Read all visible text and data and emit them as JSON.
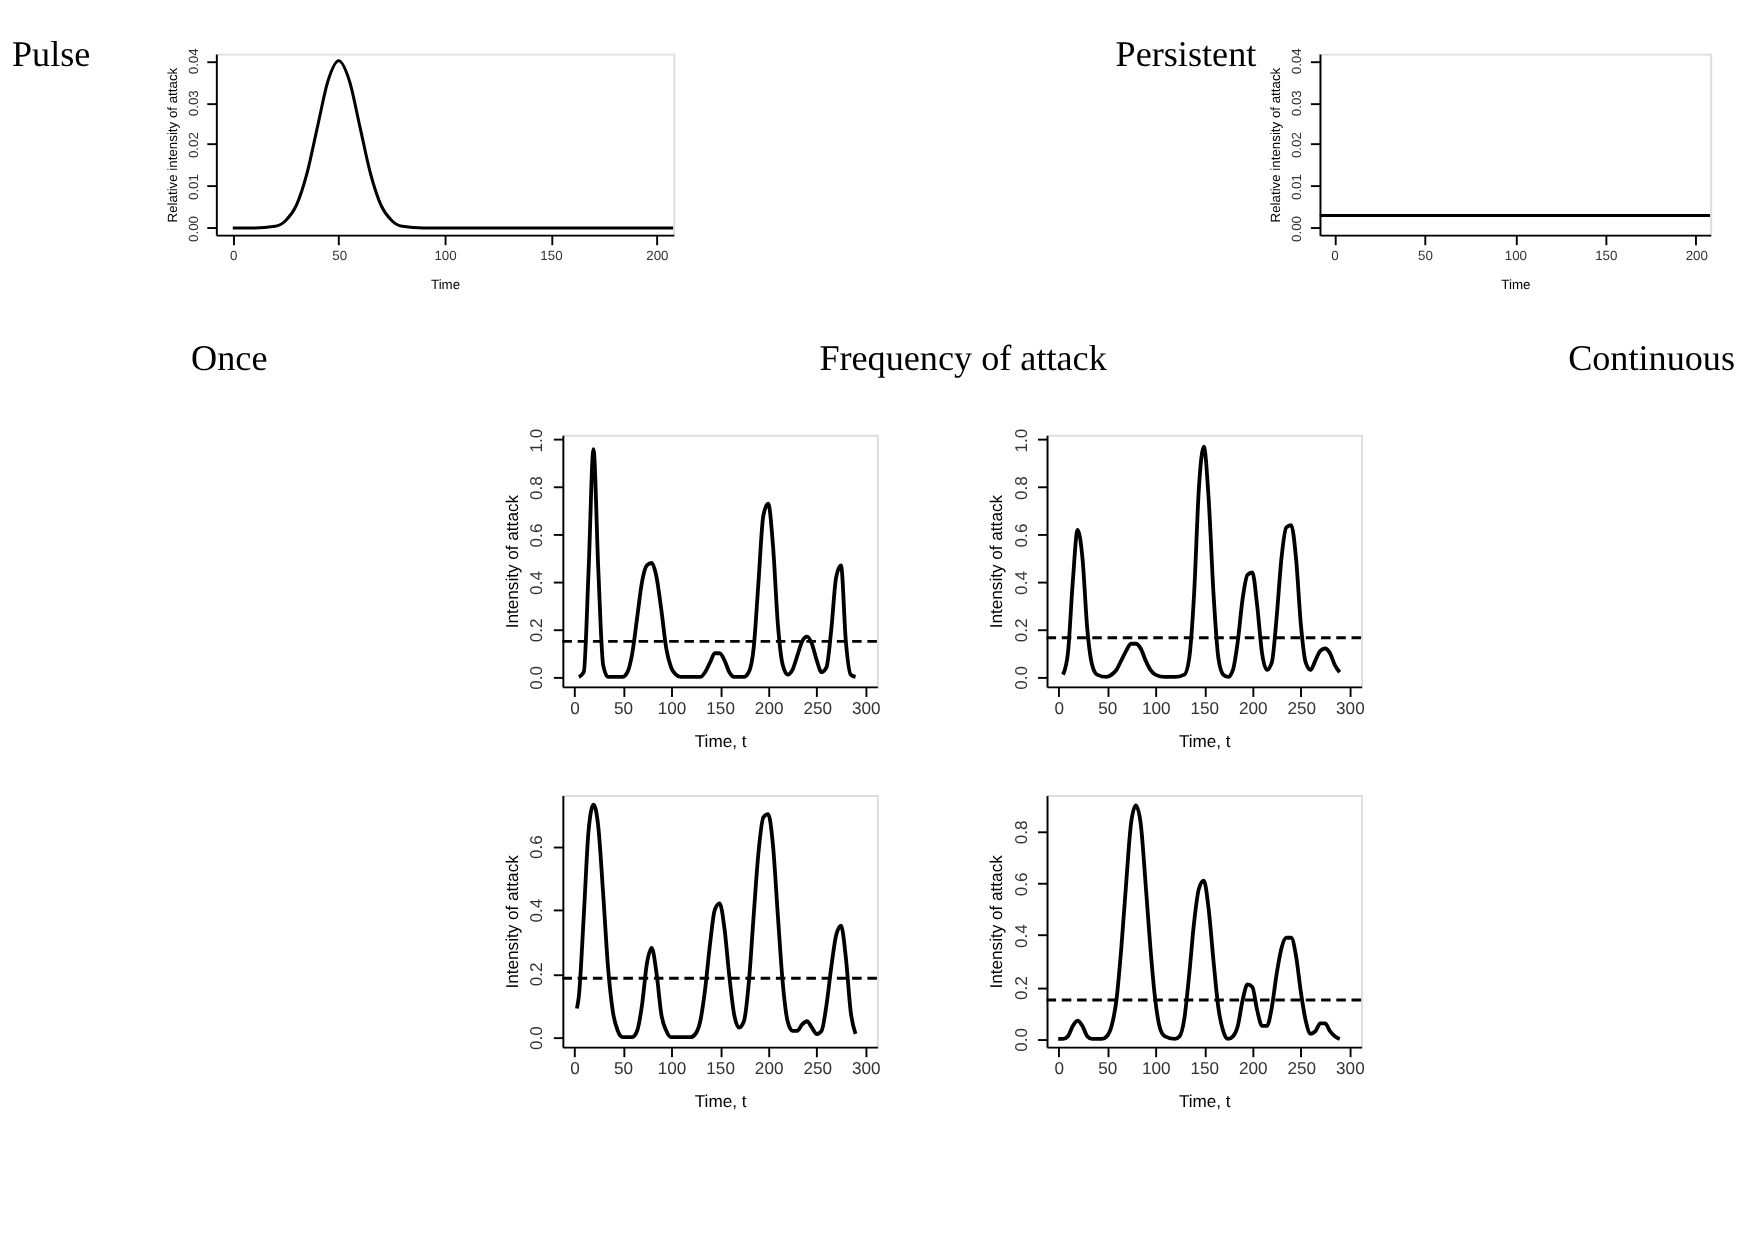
{
  "chart_data": [
    {
      "type": "line",
      "title": "Pulse",
      "xlabel": "Time",
      "ylabel": "Relative intensity of attack",
      "xlim": [
        -8,
        208
      ],
      "ylim": [
        -0.0016,
        0.0416
      ],
      "xticks": [
        0,
        50,
        100,
        150,
        200
      ],
      "yticks": [
        {
          "value": 0,
          "label": "0.00"
        },
        {
          "value": 0.01,
          "label": "0.01"
        },
        {
          "value": 0.02,
          "label": "0.02"
        },
        {
          "value": 0.03,
          "label": "0.03"
        },
        {
          "value": 0.04,
          "label": "0.04"
        }
      ],
      "x": [
        0,
        10,
        20,
        25,
        30,
        35,
        40,
        45,
        50,
        55,
        60,
        65,
        70,
        75,
        80,
        90,
        100,
        150,
        208
      ],
      "series": [
        {
          "color": "#000000",
          "values": [
            0,
            0,
            0.0004,
            0.0018,
            0.0054,
            0.013,
            0.0242,
            0.0352,
            0.0399,
            0.0352,
            0.0242,
            0.013,
            0.0054,
            0.0018,
            0.0004,
            0,
            0,
            0,
            0
          ]
        }
      ]
    },
    {
      "type": "line",
      "title": "Persistent",
      "xlabel": "Time",
      "ylabel": "Relative intensity of attack",
      "xlim": [
        -8,
        208
      ],
      "ylim": [
        -0.0016,
        0.0416
      ],
      "xticks": [
        0,
        50,
        100,
        150,
        200
      ],
      "yticks": [
        {
          "value": 0,
          "label": "0.00"
        },
        {
          "value": 0.01,
          "label": "0.01"
        },
        {
          "value": 0.02,
          "label": "0.02"
        },
        {
          "value": 0.03,
          "label": "0.03"
        },
        {
          "value": 0.04,
          "label": "0.04"
        }
      ],
      "x": [
        -8,
        208
      ],
      "series": [
        {
          "color": "#000000",
          "values": [
            0.003,
            0.003
          ]
        }
      ]
    },
    {
      "type": "other",
      "annotations": [
        "Once",
        "Frequency of attack",
        "Continuous"
      ]
    },
    {
      "type": "line",
      "xlabel": "Time, t",
      "ylabel": "Intensity of attack",
      "xlim": [
        -12,
        312
      ],
      "ylim": [
        -0.04,
        1.02
      ],
      "xticks": [
        0,
        50,
        100,
        150,
        200,
        250,
        300
      ],
      "yticks": [
        {
          "value": 0,
          "label": "0.0"
        },
        {
          "value": 0.2,
          "label": "0.2"
        },
        {
          "value": 0.4,
          "label": "0.4"
        },
        {
          "value": 0.6,
          "label": "0.6"
        },
        {
          "value": 0.8,
          "label": "0.8"
        },
        {
          "value": 1,
          "label": "1.0"
        }
      ],
      "ref_lines": [
        {
          "axis": "y",
          "value": 0.15,
          "line_style": "dashed"
        }
      ],
      "x": [
        5,
        10,
        15,
        20,
        25,
        30,
        35,
        40,
        50,
        55,
        60,
        65,
        70,
        75,
        80,
        85,
        90,
        95,
        100,
        105,
        110,
        120,
        130,
        135,
        140,
        145,
        150,
        155,
        160,
        165,
        175,
        180,
        185,
        190,
        195,
        200,
        205,
        210,
        215,
        220,
        225,
        230,
        235,
        240,
        245,
        250,
        255,
        260,
        265,
        270,
        275,
        280,
        285,
        290
      ],
      "series": [
        {
          "color": "#000000",
          "values": [
            0,
            0.02,
            0.45,
            0.96,
            0.45,
            0.05,
            0,
            0,
            0,
            0.02,
            0.1,
            0.25,
            0.4,
            0.47,
            0.48,
            0.42,
            0.28,
            0.12,
            0.04,
            0.01,
            0,
            0,
            0,
            0.02,
            0.06,
            0.1,
            0.1,
            0.07,
            0.02,
            0,
            0,
            0.02,
            0.12,
            0.4,
            0.68,
            0.73,
            0.55,
            0.22,
            0.05,
            0.01,
            0.03,
            0.09,
            0.15,
            0.17,
            0.14,
            0.07,
            0.02,
            0.04,
            0.2,
            0.42,
            0.47,
            0.15,
            0.01,
            0
          ]
        }
      ]
    },
    {
      "type": "line",
      "xlabel": "Time, t",
      "ylabel": "Intensity of attack",
      "xlim": [
        -12,
        312
      ],
      "ylim": [
        -0.04,
        1.02
      ],
      "xticks": [
        0,
        50,
        100,
        150,
        200,
        250,
        300
      ],
      "yticks": [
        {
          "value": 0,
          "label": "0.0"
        },
        {
          "value": 0.2,
          "label": "0.2"
        },
        {
          "value": 0.4,
          "label": "0.4"
        },
        {
          "value": 0.6,
          "label": "0.6"
        },
        {
          "value": 0.8,
          "label": "0.8"
        },
        {
          "value": 1,
          "label": "1.0"
        }
      ],
      "ref_lines": [
        {
          "axis": "y",
          "value": 0.165,
          "line_style": "dashed"
        }
      ],
      "x": [
        5,
        10,
        15,
        20,
        25,
        30,
        35,
        40,
        50,
        55,
        60,
        65,
        70,
        75,
        80,
        85,
        90,
        95,
        100,
        110,
        120,
        130,
        135,
        140,
        145,
        150,
        155,
        160,
        165,
        170,
        175,
        180,
        185,
        190,
        195,
        200,
        205,
        210,
        215,
        220,
        225,
        230,
        235,
        240,
        245,
        250,
        255,
        260,
        265,
        270,
        275,
        280,
        285,
        290
      ],
      "series": [
        {
          "color": "#000000",
          "values": [
            0.01,
            0.1,
            0.4,
            0.62,
            0.5,
            0.2,
            0.05,
            0.01,
            0,
            0.01,
            0.03,
            0.07,
            0.11,
            0.14,
            0.14,
            0.12,
            0.07,
            0.03,
            0.01,
            0,
            0,
            0.01,
            0.08,
            0.35,
            0.8,
            0.97,
            0.75,
            0.35,
            0.08,
            0.01,
            0,
            0.03,
            0.15,
            0.33,
            0.43,
            0.44,
            0.3,
            0.1,
            0.03,
            0.06,
            0.25,
            0.5,
            0.63,
            0.64,
            0.5,
            0.22,
            0.06,
            0.03,
            0.07,
            0.11,
            0.12,
            0.1,
            0.05,
            0.02
          ]
        }
      ]
    },
    {
      "type": "line",
      "xlabel": "Time, t",
      "ylabel": "Intensity of attack",
      "xlim": [
        -12,
        312
      ],
      "ylim": [
        -0.03,
        0.76
      ],
      "xticks": [
        0,
        50,
        100,
        150,
        200,
        250,
        300
      ],
      "yticks": [
        {
          "value": 0,
          "label": "0.0"
        },
        {
          "value": 0.2,
          "label": "0.2"
        },
        {
          "value": 0.4,
          "label": "0.4"
        },
        {
          "value": 0.6,
          "label": "0.6"
        }
      ],
      "ref_lines": [
        {
          "axis": "y",
          "value": 0.185,
          "line_style": "dashed"
        }
      ],
      "x": [
        3,
        5,
        10,
        15,
        20,
        25,
        30,
        35,
        40,
        45,
        50,
        55,
        60,
        65,
        70,
        75,
        80,
        85,
        90,
        95,
        100,
        110,
        120,
        125,
        130,
        135,
        140,
        145,
        150,
        155,
        160,
        165,
        170,
        175,
        180,
        185,
        190,
        195,
        200,
        205,
        210,
        215,
        220,
        225,
        230,
        235,
        240,
        245,
        250,
        255,
        260,
        265,
        270,
        275,
        280,
        285,
        290
      ],
      "series": [
        {
          "color": "#000000",
          "values": [
            0.09,
            0.13,
            0.38,
            0.65,
            0.73,
            0.66,
            0.45,
            0.22,
            0.08,
            0.02,
            0,
            0,
            0,
            0.02,
            0.1,
            0.23,
            0.28,
            0.2,
            0.07,
            0.02,
            0,
            0,
            0,
            0.01,
            0.05,
            0.15,
            0.29,
            0.4,
            0.42,
            0.34,
            0.19,
            0.07,
            0.03,
            0.05,
            0.17,
            0.38,
            0.58,
            0.69,
            0.7,
            0.6,
            0.38,
            0.17,
            0.05,
            0.02,
            0.02,
            0.04,
            0.05,
            0.03,
            0.01,
            0.02,
            0.1,
            0.22,
            0.32,
            0.35,
            0.25,
            0.08,
            0.01
          ]
        }
      ]
    },
    {
      "type": "line",
      "xlabel": "Time, t",
      "ylabel": "Intensity of attack",
      "xlim": [
        -12,
        312
      ],
      "ylim": [
        -0.03,
        0.94
      ],
      "xticks": [
        0,
        50,
        100,
        150,
        200,
        250,
        300
      ],
      "yticks": [
        {
          "value": 0,
          "label": "0.0"
        },
        {
          "value": 0.2,
          "label": "0.2"
        },
        {
          "value": 0.4,
          "label": "0.4"
        },
        {
          "value": 0.6,
          "label": "0.6"
        },
        {
          "value": 0.8,
          "label": "0.8"
        }
      ],
      "ref_lines": [
        {
          "axis": "y",
          "value": 0.15,
          "line_style": "dashed"
        }
      ],
      "x": [
        0,
        5,
        10,
        15,
        20,
        25,
        30,
        35,
        45,
        50,
        55,
        60,
        65,
        70,
        75,
        80,
        85,
        90,
        95,
        100,
        105,
        110,
        120,
        125,
        130,
        135,
        140,
        145,
        150,
        155,
        160,
        165,
        170,
        175,
        180,
        185,
        190,
        195,
        200,
        205,
        210,
        215,
        220,
        225,
        230,
        235,
        240,
        245,
        250,
        255,
        260,
        265,
        270,
        275,
        280,
        285,
        290
      ],
      "series": [
        {
          "color": "#000000",
          "values": [
            0,
            0,
            0.01,
            0.05,
            0.07,
            0.05,
            0.01,
            0,
            0,
            0.01,
            0.05,
            0.15,
            0.35,
            0.6,
            0.83,
            0.9,
            0.83,
            0.6,
            0.35,
            0.15,
            0.04,
            0.01,
            0,
            0.01,
            0.08,
            0.25,
            0.45,
            0.58,
            0.61,
            0.5,
            0.3,
            0.12,
            0.03,
            0,
            0.01,
            0.05,
            0.15,
            0.21,
            0.2,
            0.11,
            0.05,
            0.05,
            0.12,
            0.25,
            0.35,
            0.39,
            0.39,
            0.32,
            0.18,
            0.07,
            0.02,
            0.03,
            0.06,
            0.06,
            0.03,
            0.01,
            0
          ]
        }
      ]
    }
  ]
}
